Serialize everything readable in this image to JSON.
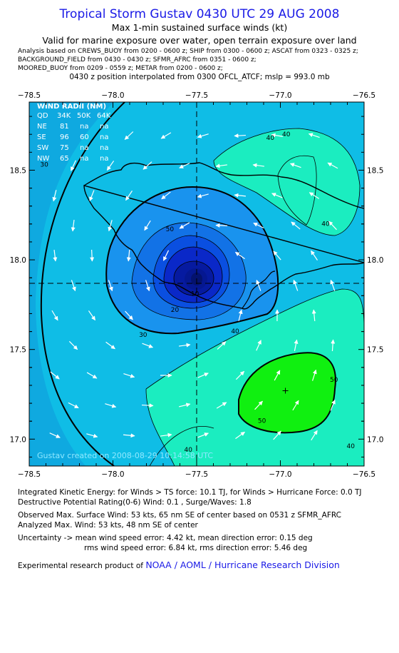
{
  "header": {
    "title": "Tropical Storm Gustav 0430 UTC 29 AUG 2008",
    "subtitle1": "Max 1-min sustained surface winds (kt)",
    "subtitle2": "Valid for marine exposure over water, open terrain exposure over land",
    "analysis_lines": [
      "Analysis based on  CREWS_BUOY from 0200 - 0600 z;  SHIP from 0300 - 0600 z;  ASCAT from 0323 - 0325 z;",
      "BACKGROUND_FIELD from 0430 - 0430 z;  SFMR_AFRC from 0351 - 0600 z;",
      "MOORED_BUOY from 0209 - 0559 z;  METAR from 0200 - 0600 z;"
    ],
    "position_line": "0430 z position interpolated from 0300 OFCL_ATCF; mslp = 993.0 mb"
  },
  "chart_data": {
    "type": "contour",
    "x_tick_labels": [
      "−78.5",
      "−78.0",
      "−77.5",
      "−77.0",
      "−76.5"
    ],
    "y_tick_labels": [
      "17.0",
      "17.5",
      "18.0",
      "18.5"
    ],
    "x_ticks": [
      -78.5,
      -78.0,
      -77.5,
      -77.0,
      -76.5
    ],
    "y_ticks": [
      17.0,
      17.5,
      18.0,
      18.5
    ],
    "xlim": [
      -78.5,
      -76.5
    ],
    "ylim": [
      16.85,
      18.88
    ],
    "center": {
      "lon": -77.5,
      "lat": 17.85
    },
    "max_wind_marker": {
      "lon": -76.97,
      "lat": 17.27
    },
    "contour_levels": [
      10,
      20,
      30,
      40,
      50
    ],
    "contour_labels": [
      {
        "text": "30",
        "lon": -77.82,
        "lat": 17.57
      },
      {
        "text": "40",
        "lon": -77.06,
        "lat": 18.67
      },
      {
        "text": "40",
        "lon": -77.27,
        "lat": 17.59
      },
      {
        "text": "40",
        "lon": -76.73,
        "lat": 18.19
      },
      {
        "text": "40",
        "lon": -76.58,
        "lat": 16.95
      },
      {
        "text": "40",
        "lon": -77.55,
        "lat": 16.93
      },
      {
        "text": "50",
        "lon": -77.66,
        "lat": 18.16
      },
      {
        "text": "50",
        "lon": -77.11,
        "lat": 17.09
      },
      {
        "text": "50",
        "lon": -76.68,
        "lat": 17.32
      },
      {
        "text": "30",
        "lon": -78.41,
        "lat": 18.52
      },
      {
        "text": "20",
        "lon": -77.63,
        "lat": 17.71
      },
      {
        "text": "10",
        "lon": -77.51,
        "lat": 17.8
      }
    ],
    "wind_radii": {
      "title": "WIND RADII (NM)",
      "header": [
        "QD",
        "34K",
        "50K",
        "64K"
      ],
      "rows": [
        [
          "NE",
          "81",
          "na",
          "na"
        ],
        [
          "SE",
          "96",
          "60",
          "na"
        ],
        [
          "SW",
          "75",
          "na",
          "na"
        ],
        [
          "NW",
          "65",
          "na",
          "na"
        ]
      ]
    },
    "watermark": "Gustav   created on 2008-08-29 10:14:58 UTC",
    "colors": {
      "frame": "#000000",
      "c_bg": "#0fbde6",
      "c30": "#10d7ee",
      "c40": "#1bedc0",
      "c50": "#10f010",
      "c20": "#1993ee",
      "c15": "#1272e6",
      "c10": "#0a4fe0",
      "c5": "#0a28c8",
      "c0": "#061aa0"
    }
  },
  "footer": {
    "line1": "Integrated Kinetic Energy:  for Winds > TS force: 10.1 TJ,  for Winds > Hurricane Force: 0.0 TJ",
    "line2": "Destructive Potential Rating(0-6)   Wind: 0.1 , Surge/Waves: 1.8",
    "line3": "Observed Max. Surface Wind: 53 kts, 65 nm SE of center based on 0531 z SFMR_AFRC",
    "line4": "Analyzed Max. Wind: 53 kts, 48 nm SE of center",
    "line5": "Uncertainty -> mean wind speed error: 4.42 kt,   mean direction error: 0.15 deg",
    "line6": "rms wind speed error: 6.84 kt,   rms direction error: 5.46 deg",
    "credit_prefix": "Experimental research product of",
    "credit_org": "NOAA / AOML / Hurricane Research Division"
  }
}
